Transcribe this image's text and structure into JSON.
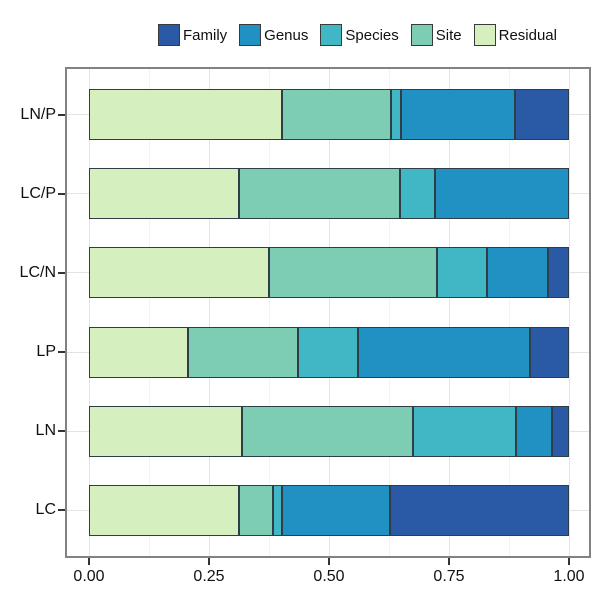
{
  "legend": {
    "items": [
      {
        "label": "Family",
        "color": "#2a5aa6"
      },
      {
        "label": "Genus",
        "color": "#2191c4"
      },
      {
        "label": "Species",
        "color": "#41b6c4"
      },
      {
        "label": "Site",
        "color": "#7dccb4"
      },
      {
        "label": "Residual",
        "color": "#d6efbf"
      }
    ]
  },
  "chart_data": {
    "type": "bar",
    "orientation": "horizontal",
    "stacked": true,
    "title": "",
    "xlabel": "",
    "ylabel": "",
    "xlim": [
      0,
      1
    ],
    "categories": [
      "LN/P",
      "LC/P",
      "LC/N",
      "LP",
      "LN",
      "LC"
    ],
    "series": [
      {
        "name": "Residual",
        "color": "#d6efbf",
        "values": [
          0.403,
          0.313,
          0.374,
          0.207,
          0.319,
          0.313
        ]
      },
      {
        "name": "Site",
        "color": "#7dccb4",
        "values": [
          0.226,
          0.335,
          0.35,
          0.228,
          0.355,
          0.071
        ]
      },
      {
        "name": "Species",
        "color": "#41b6c4",
        "values": [
          0.022,
          0.072,
          0.105,
          0.125,
          0.216,
          0.019
        ]
      },
      {
        "name": "Genus",
        "color": "#2191c4",
        "values": [
          0.236,
          0.28,
          0.128,
          0.359,
          0.074,
          0.224
        ]
      },
      {
        "name": "Family",
        "color": "#2a5aa6",
        "values": [
          0.113,
          0.0,
          0.043,
          0.081,
          0.036,
          0.373
        ]
      }
    ],
    "legend_order": [
      "Family",
      "Genus",
      "Species",
      "Site",
      "Residual"
    ],
    "legend_position": "top",
    "x_ticks": [
      "0.00",
      "0.25",
      "0.50",
      "0.75",
      "1.00"
    ],
    "x_tick_values": [
      0,
      0.25,
      0.5,
      0.75,
      1
    ],
    "grid": {
      "major_x": [
        0,
        0.25,
        0.5,
        0.75,
        1
      ],
      "minor_x": [
        0.125,
        0.375,
        0.625,
        0.875
      ],
      "major_y_at_category_centers": true
    },
    "colors": {
      "bar_outline": "#2f3e46",
      "panel_border": "#828282",
      "grid_major": "#e3e3e3",
      "grid_minor": "#f2f2f2",
      "tick": "#333333",
      "text": "#111111"
    }
  }
}
